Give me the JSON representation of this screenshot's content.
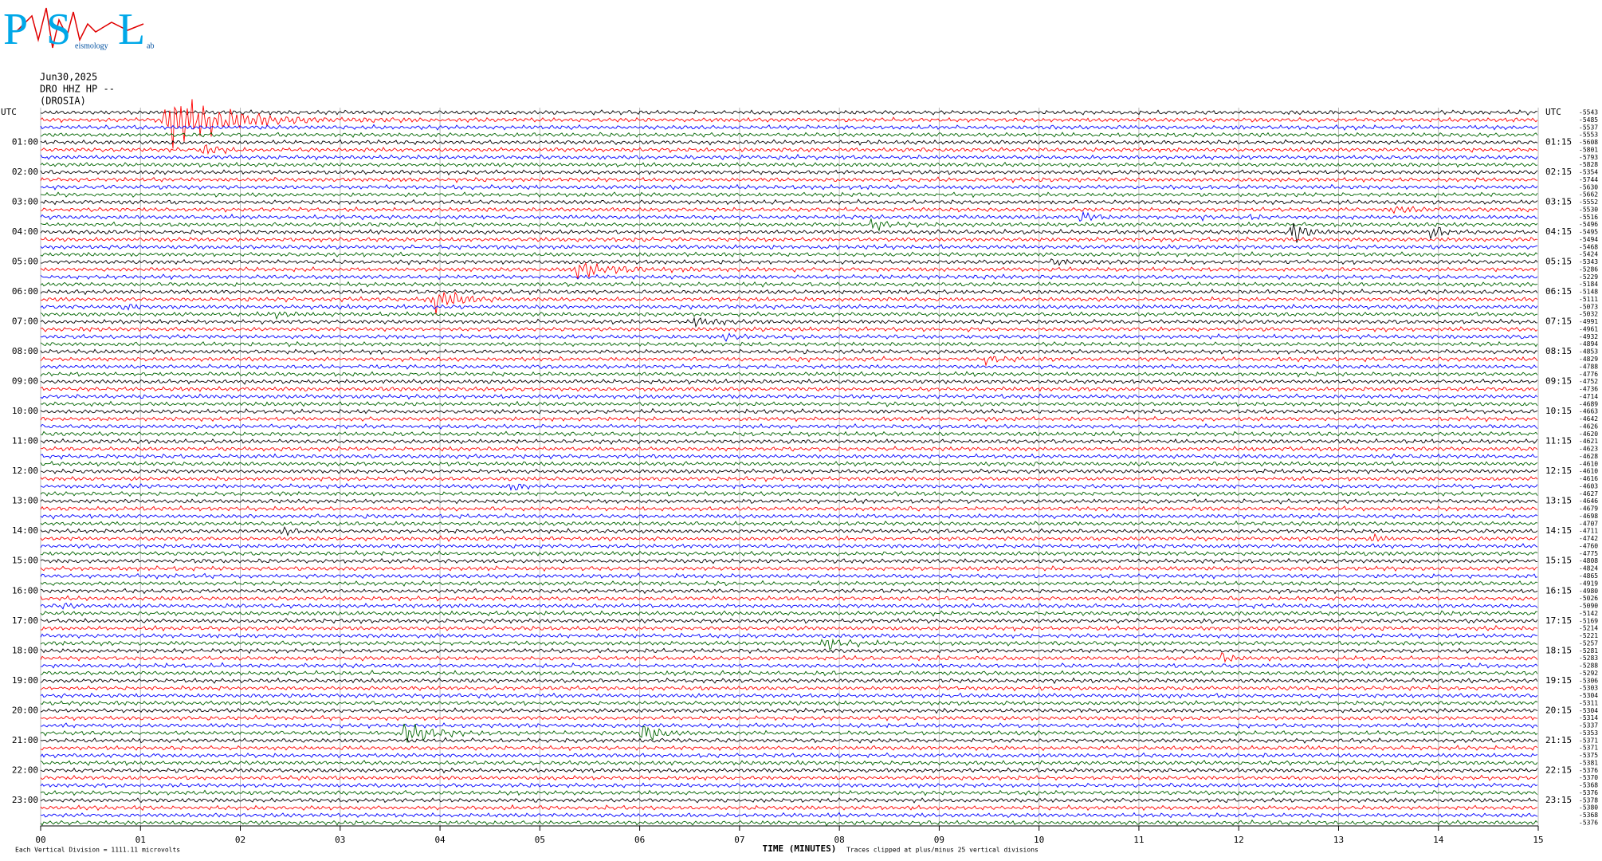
{
  "logo": {
    "letter_p": "P",
    "letter_s": "S",
    "letter_l": "L",
    "word_s": "eismology",
    "word_l": "ab"
  },
  "header": {
    "date": "Jun30,2025",
    "channel": "DRO HHZ HP --",
    "location": "(DROSIA)"
  },
  "left_labels": [
    "UTC",
    "01:00",
    "02:00",
    "03:00",
    "04:00",
    "05:00",
    "06:00",
    "07:00",
    "08:00",
    "09:00",
    "10:00",
    "11:00",
    "12:00",
    "13:00",
    "14:00",
    "15:00",
    "16:00",
    "17:00",
    "18:00",
    "19:00",
    "20:00",
    "21:00",
    "22:00",
    "23:00"
  ],
  "right_labels": [
    "UTC",
    "01:15",
    "02:15",
    "03:15",
    "04:15",
    "05:15",
    "06:15",
    "07:15",
    "08:15",
    "09:15",
    "10:15",
    "11:15",
    "12:15",
    "13:15",
    "14:15",
    "15:15",
    "16:15",
    "17:15",
    "18:15",
    "19:15",
    "20:15",
    "21:15",
    "22:15",
    "23:15"
  ],
  "trace_offsets": [
    -5543,
    -5485,
    -5537,
    -5553,
    -5608,
    -5801,
    -5793,
    -5828,
    -5354,
    -5744,
    -5630,
    -5662,
    -5552,
    -5530,
    -5516,
    -5496,
    -5495,
    -5494,
    -5468,
    -5424,
    -5343,
    -5286,
    -5229,
    -5184,
    -5148,
    -5111,
    -5073,
    -5032,
    -4991,
    -4961,
    -4932,
    -4894,
    -4853,
    -4829,
    -4788,
    -4776,
    -4752,
    -4736,
    -4714,
    -4689,
    -4663,
    -4642,
    -4626,
    -4620,
    -4621,
    -4623,
    -4628,
    -4610,
    -4610,
    -4616,
    -4603,
    -4627,
    -4646,
    -4679,
    -4698,
    -4707,
    -4711,
    -4742,
    -4760,
    -4775,
    -4808,
    -4824,
    -4865,
    -4919,
    -4980,
    -5026,
    -5090,
    -5142,
    -5169,
    -5214,
    -5221,
    -5257,
    -5281,
    -5283,
    -5288,
    -5292,
    -5306,
    -5303,
    -5304,
    -5311,
    -5304,
    -5314,
    -5337,
    -5353,
    -5371,
    -5371,
    -5375,
    -5381,
    -5376,
    -5370,
    -5368,
    -5376,
    -5378,
    -5380,
    -5368,
    -5376
  ],
  "trace_colors": [
    "#000000",
    "#ff0000",
    "#0000ff",
    "#006400"
  ],
  "x_axis": {
    "ticks": [
      "00",
      "01",
      "02",
      "03",
      "04",
      "05",
      "06",
      "07",
      "08",
      "09",
      "10",
      "11",
      "12",
      "13",
      "14",
      "15"
    ],
    "title": "TIME (MINUTES)"
  },
  "footer": {
    "scale": "Each Vertical Division = 1111.11 microvolts",
    "clip": "Traces clipped at plus/minus 25 vertical divisions"
  }
}
